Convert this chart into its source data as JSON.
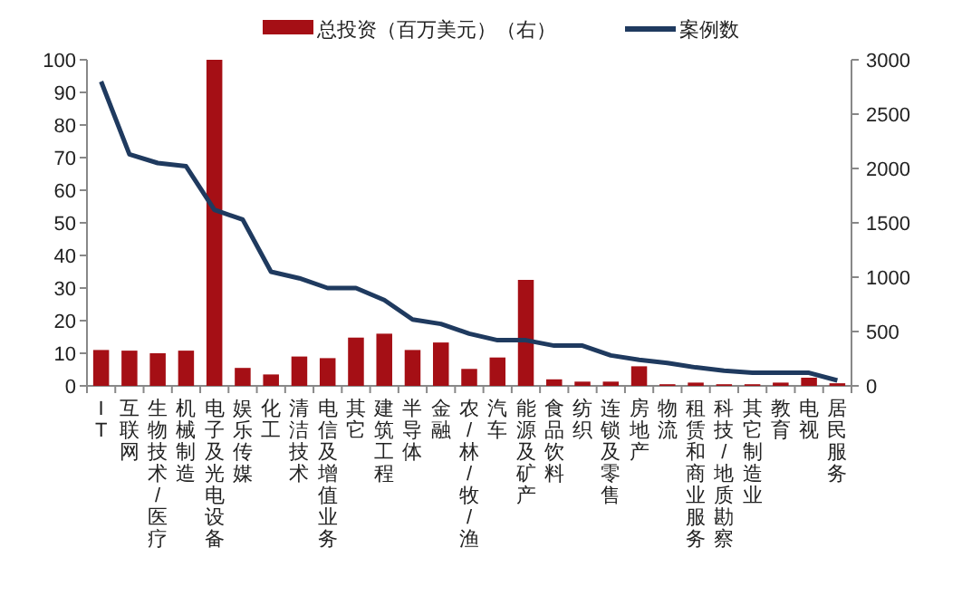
{
  "chart_data": {
    "type": "bar",
    "categories": [
      "IT",
      "互联网",
      "生物技术/医疗",
      "机械制造",
      "电子及光电设备",
      "娱乐传媒",
      "化工",
      "清洁技术",
      "电信及增值业务",
      "其它",
      "建筑工程",
      "半导体",
      "金融",
      "农/林/牧/渔",
      "汽车",
      "能源及矿产",
      "食品饮料",
      "纺织",
      "连锁及零售",
      "房地产",
      "物流",
      "租赁和商业服务",
      "科技/地质勘察",
      "其它制造业",
      "教育",
      "电视",
      "居民服务"
    ],
    "series": [
      {
        "name": "总投资（百万美元）（右）",
        "color": "#a50f15",
        "values": [
          11,
          10.8,
          10,
          10.8,
          100,
          5.5,
          3.5,
          9,
          8.5,
          14.8,
          16,
          11,
          13.3,
          5.2,
          8.7,
          32.5,
          2,
          1.3,
          1.3,
          6,
          0.5,
          1,
          0.5,
          0.5,
          1,
          2.5,
          0.8
        ]
      },
      {
        "name": "案例数",
        "type": "line",
        "axis": "y2",
        "color": "#1f3a5f",
        "values": [
          2800,
          2130,
          2050,
          2020,
          1620,
          1530,
          1050,
          990,
          900,
          900,
          790,
          610,
          570,
          480,
          420,
          420,
          370,
          370,
          280,
          240,
          210,
          170,
          140,
          120,
          120,
          120,
          50
        ]
      }
    ],
    "ylim": [
      0,
      100
    ],
    "yticks": [
      0,
      10,
      20,
      30,
      40,
      50,
      60,
      70,
      80,
      90,
      100
    ],
    "y2lim": [
      0,
      3000
    ],
    "y2ticks": [
      0,
      500,
      1000,
      1500,
      2000,
      2500,
      3000
    ],
    "legend": "top",
    "grid": false
  }
}
